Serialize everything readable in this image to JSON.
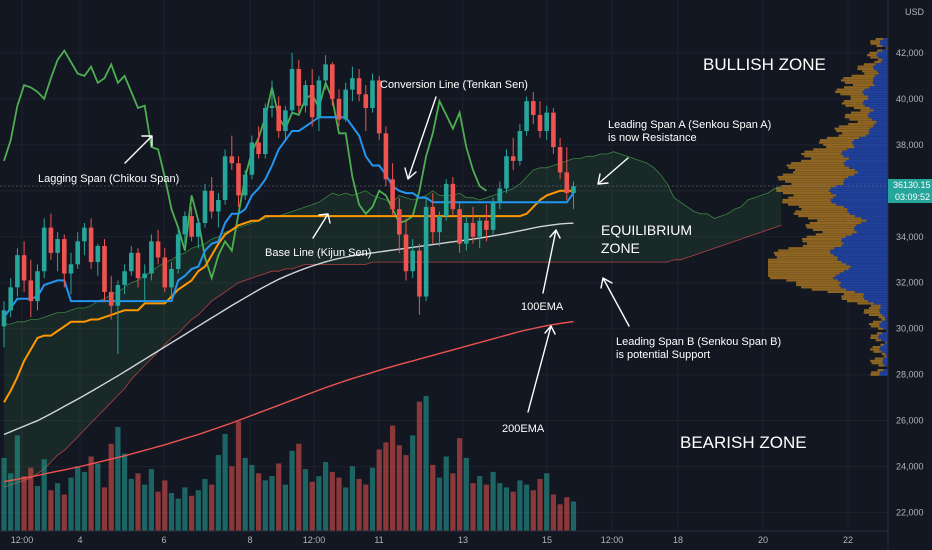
{
  "chart_data": {
    "type": "candlestick",
    "currency_label": "USD",
    "y_ticks": [
      22000,
      24000,
      26000,
      28000,
      30000,
      32000,
      34000,
      36000,
      38000,
      40000,
      42000
    ],
    "ylim": [
      21200,
      44300
    ],
    "x_ticks": [
      "12:00",
      "4",
      "6",
      "8",
      "12:00",
      "11",
      "13",
      "15",
      "12:00",
      "18",
      "20",
      "22"
    ],
    "last_price": {
      "value": "36130.15",
      "countdown": "03:09:52"
    },
    "colors": {
      "up": "#26a69a",
      "down": "#ef5350",
      "tenkan": "#2196f3",
      "kijun": "#ff9800",
      "chikou": "#4caf50",
      "ema100": "#d1d4dc",
      "ema200": "#ef5350",
      "vp_up": "#2962ff",
      "vp_down": "#f5a623"
    },
    "candles": [
      [
        30100,
        31200,
        29200,
        30800
      ],
      [
        30800,
        32200,
        30500,
        31800
      ],
      [
        31800,
        33500,
        31400,
        33200
      ],
      [
        33200,
        33800,
        31600,
        32100
      ],
      [
        32100,
        33000,
        30500,
        31200
      ],
      [
        31200,
        32800,
        30800,
        32500
      ],
      [
        32500,
        34800,
        32200,
        34400
      ],
      [
        34400,
        35000,
        33000,
        33300
      ],
      [
        33300,
        34200,
        32500,
        33900
      ],
      [
        33900,
        34100,
        31800,
        32400
      ],
      [
        32400,
        33300,
        31500,
        32800
      ],
      [
        32800,
        34200,
        32600,
        33800
      ],
      [
        33800,
        34600,
        33200,
        34400
      ],
      [
        34400,
        34800,
        32600,
        32900
      ],
      [
        32900,
        33700,
        32300,
        33600
      ],
      [
        33600,
        33900,
        31200,
        31600
      ],
      [
        31600,
        32300,
        30400,
        31000
      ],
      [
        31000,
        32100,
        28900,
        31900
      ],
      [
        31900,
        32800,
        31500,
        32500
      ],
      [
        32500,
        33600,
        32300,
        33300
      ],
      [
        33300,
        33500,
        31800,
        32200
      ],
      [
        32200,
        32800,
        31200,
        32400
      ],
      [
        32400,
        34100,
        32100,
        33800
      ],
      [
        33800,
        34300,
        32800,
        33100
      ],
      [
        33100,
        33500,
        31600,
        31800
      ],
      [
        31800,
        32900,
        31400,
        32600
      ],
      [
        32600,
        34300,
        32400,
        34100
      ],
      [
        34100,
        35100,
        33600,
        34900
      ],
      [
        34900,
        35300,
        33800,
        34000
      ],
      [
        34000,
        34800,
        33500,
        34600
      ],
      [
        34600,
        36300,
        34400,
        36000
      ],
      [
        36000,
        36600,
        34800,
        35100
      ],
      [
        35100,
        35900,
        34400,
        35600
      ],
      [
        35600,
        37800,
        35400,
        37500
      ],
      [
        37500,
        38400,
        36900,
        37200
      ],
      [
        37200,
        37500,
        35300,
        35800
      ],
      [
        35800,
        36900,
        35600,
        36700
      ],
      [
        36700,
        38400,
        36500,
        38100
      ],
      [
        38100,
        38800,
        37400,
        37600
      ],
      [
        37600,
        39800,
        37400,
        39600
      ],
      [
        39600,
        40800,
        39200,
        39700
      ],
      [
        39700,
        40100,
        38300,
        38600
      ],
      [
        38600,
        39700,
        38200,
        39500
      ],
      [
        39500,
        42000,
        39300,
        41300
      ],
      [
        41300,
        41700,
        39400,
        39700
      ],
      [
        39700,
        40800,
        39400,
        40600
      ],
      [
        40600,
        41300,
        38800,
        39200
      ],
      [
        39200,
        41000,
        38600,
        40800
      ],
      [
        40800,
        41900,
        40400,
        41500
      ],
      [
        41500,
        41600,
        39700,
        40000
      ],
      [
        40000,
        40400,
        38800,
        39100
      ],
      [
        39100,
        40700,
        39000,
        40400
      ],
      [
        40400,
        41400,
        39900,
        40900
      ],
      [
        40900,
        41300,
        39900,
        40200
      ],
      [
        40200,
        40600,
        38600,
        39600
      ],
      [
        39600,
        41100,
        39400,
        40800
      ],
      [
        40800,
        41000,
        38200,
        38500
      ],
      [
        38500,
        38800,
        36200,
        36500
      ],
      [
        36500,
        37200,
        34900,
        35200
      ],
      [
        35200,
        35700,
        33300,
        34100
      ],
      [
        34100,
        34800,
        32100,
        32500
      ],
      [
        32500,
        33900,
        32200,
        33400
      ],
      [
        33400,
        33700,
        30600,
        31400
      ],
      [
        31400,
        35700,
        31200,
        35300
      ],
      [
        35300,
        35900,
        33700,
        34200
      ],
      [
        34200,
        35100,
        33600,
        34900
      ],
      [
        34900,
        36500,
        34700,
        36300
      ],
      [
        36300,
        36600,
        34900,
        35200
      ],
      [
        35200,
        35500,
        33300,
        33700
      ],
      [
        33700,
        34900,
        33400,
        34600
      ],
      [
        34600,
        35300,
        33700,
        34000
      ],
      [
        34000,
        34900,
        33500,
        34700
      ],
      [
        34700,
        35400,
        33800,
        34300
      ],
      [
        34300,
        35700,
        34100,
        35500
      ],
      [
        35500,
        36400,
        35200,
        36100
      ],
      [
        36100,
        37800,
        35900,
        37500
      ],
      [
        37500,
        38300,
        36900,
        37300
      ],
      [
        37300,
        38900,
        37100,
        38600
      ],
      [
        38600,
        40100,
        38400,
        39900
      ],
      [
        39900,
        40300,
        38900,
        39300
      ],
      [
        39300,
        39900,
        38300,
        38600
      ],
      [
        38600,
        39700,
        38200,
        39400
      ],
      [
        39400,
        39600,
        37600,
        37900
      ],
      [
        37900,
        38300,
        36500,
        36800
      ],
      [
        36800,
        37900,
        35600,
        35900
      ],
      [
        35900,
        36400,
        35200,
        36200
      ]
    ],
    "tenkan": [
      30500,
      30900,
      31300,
      31300,
      31300,
      31400,
      31900,
      32000,
      32100,
      32100,
      31200,
      31200,
      31200,
      31200,
      31200,
      31200,
      31200,
      31200,
      31200,
      31200,
      31200,
      31200,
      31200,
      31200,
      31200,
      31200,
      32100,
      32300,
      32600,
      32700,
      33400,
      33700,
      33800,
      34600,
      35000,
      35000,
      35200,
      35800,
      36100,
      36500,
      37100,
      37800,
      38200,
      38600,
      38600,
      38800,
      39000,
      39200,
      39200,
      39200,
      39200,
      39200,
      38800,
      38400,
      37500,
      37100,
      37100,
      36700,
      36200,
      36000,
      35900,
      35900,
      35700,
      35700,
      35500,
      35500,
      35500,
      35500,
      35500,
      35500,
      35500,
      35500,
      35500,
      35500,
      35500,
      35500,
      35500,
      35500,
      35500,
      35500,
      35500,
      35500,
      35500,
      35500,
      35500,
      35900
    ],
    "kijun": [
      26800,
      27300,
      27900,
      28600,
      29100,
      29600,
      29700,
      29700,
      29900,
      30100,
      30300,
      30300,
      30300,
      30400,
      30400,
      30500,
      30600,
      30700,
      30800,
      30800,
      30800,
      31100,
      31100,
      31100,
      31100,
      31400,
      31700,
      31900,
      32100,
      32500,
      32700,
      33200,
      33700,
      34100,
      34300,
      34500,
      34600,
      34700,
      34700,
      34900,
      34900,
      34900,
      34900,
      34900,
      34900,
      34900,
      34900,
      34900,
      34900,
      34900,
      34900,
      34900,
      34900,
      34900,
      34900,
      34900,
      34900,
      34900,
      34900,
      34900,
      34900,
      34900,
      34900,
      34900,
      34900,
      34900,
      34900,
      34900,
      34900,
      34900,
      34900,
      34900,
      34900,
      34900,
      34900,
      34900,
      34900,
      34900,
      35000,
      35300,
      35600,
      35800,
      35900,
      36000,
      36000,
      36000
    ],
    "chikou": [
      37300,
      38200,
      39700,
      40600,
      40500,
      40300,
      40000,
      40900,
      41700,
      42100,
      41600,
      41100,
      41000,
      41400,
      40700,
      40900,
      41500,
      40700,
      41000,
      40300,
      39600,
      39700,
      37900,
      37800,
      36600,
      35200,
      34400,
      33400,
      35800,
      34700,
      33100,
      32200,
      33200,
      33800,
      33400,
      35000,
      36600,
      37700,
      38300,
      39200,
      40500,
      39200,
      38700,
      39400,
      39300,
      40000,
      40200,
      39600,
      40700,
      40000,
      38500,
      38500,
      36600,
      35400,
      35000,
      35300,
      36000,
      35800,
      35200,
      34600,
      34700,
      34900,
      36000,
      37500,
      38500,
      39900,
      39300,
      38700,
      39400,
      37900,
      36900,
      36200,
      36000
    ],
    "ema100": [
      25400,
      25520,
      25640,
      25760,
      25880,
      26000,
      26150,
      26300,
      26460,
      26620,
      26780,
      26940,
      27100,
      27270,
      27440,
      27610,
      27780,
      27950,
      28130,
      28310,
      28490,
      28670,
      28850,
      29030,
      29210,
      29390,
      29570,
      29750,
      29930,
      30110,
      30290,
      30470,
      30650,
      30830,
      31010,
      31180,
      31350,
      31520,
      31690,
      31850,
      32000,
      32150,
      32280,
      32400,
      32520,
      32630,
      32730,
      32820,
      32910,
      32990,
      33060,
      33120,
      33170,
      33220,
      33260,
      33300,
      33340,
      33380,
      33420,
      33460,
      33500,
      33540,
      33580,
      33620,
      33660,
      33700,
      33740,
      33780,
      33820,
      33860,
      33900,
      33940,
      33990,
      34040,
      34090,
      34140,
      34200,
      34260,
      34320,
      34380,
      34440,
      34480,
      34520,
      34560,
      34580,
      34590
    ],
    "ema200": [
      23350,
      23400,
      23450,
      23500,
      23560,
      23620,
      23680,
      23740,
      23800,
      23860,
      23920,
      23980,
      24050,
      24120,
      24190,
      24260,
      24330,
      24400,
      24470,
      24550,
      24630,
      24710,
      24790,
      24870,
      24950,
      25040,
      25130,
      25220,
      25310,
      25400,
      25500,
      25600,
      25700,
      25800,
      25900,
      26010,
      26120,
      26230,
      26340,
      26450,
      26560,
      26670,
      26780,
      26890,
      27000,
      27110,
      27220,
      27330,
      27440,
      27540,
      27640,
      27740,
      27830,
      27920,
      28010,
      28100,
      28190,
      28280,
      28360,
      28440,
      28520,
      28600,
      28680,
      28760,
      28840,
      28920,
      29000,
      29080,
      29160,
      29240,
      29320,
      29400,
      29480,
      29560,
      29640,
      29720,
      29800,
      29880,
      29950,
      30010,
      30070,
      30130,
      30180,
      30230,
      30270,
      30310
    ],
    "senkou_a": [
      30200,
      30200,
      30300,
      30300,
      30400,
      30400,
      30500,
      30600,
      30700,
      30700,
      30800,
      30900,
      30900,
      31000,
      31200,
      31300,
      31500,
      31600,
      31800,
      32000,
      32100,
      32300,
      32500,
      32700,
      32900,
      33000,
      33200,
      33300,
      33500,
      33600,
      33700,
      33900,
      34000,
      34200,
      34300,
      34400,
      34500,
      34600,
      34700,
      34800,
      34900,
      34900,
      35000,
      35100,
      35200,
      35300,
      35400,
      35500,
      35700,
      35900,
      35800,
      35900,
      35800,
      35900,
      36000,
      35800,
      35700,
      35600,
      35500,
      35800,
      35700,
      35600,
      35700,
      35800,
      36000,
      35800,
      35800,
      35800,
      35900,
      35700,
      35700,
      35600,
      35700,
      35800,
      35900,
      36000,
      36100,
      36300,
      36600,
      36900,
      37000,
      37000,
      37100,
      37200,
      37300,
      37400,
      37400,
      37500,
      37500,
      37600,
      37600,
      37700,
      37600,
      37500,
      37400,
      37300,
      37200,
      37000,
      36700,
      36300,
      35700,
      35500,
      35300,
      35100,
      35000,
      35000,
      34800,
      34900,
      35000,
      35200,
      35300,
      35600,
      35700,
      35800,
      35900,
      36100,
      36200
    ],
    "senkou_b": [
      23100,
      23200,
      23300,
      23400,
      23500,
      23700,
      23900,
      24200,
      24500,
      24700,
      25000,
      25300,
      25600,
      25900,
      26200,
      26500,
      26800,
      27100,
      27400,
      27800,
      28100,
      28400,
      28700,
      29000,
      29300,
      29600,
      29800,
      30100,
      30400,
      30600,
      30900,
      31200,
      31400,
      31600,
      31800,
      32000,
      32100,
      32200,
      32300,
      32400,
      32500,
      32500,
      32600,
      32600,
      32700,
      32800,
      32800,
      32800,
      32800,
      32800,
      32800,
      32800,
      32800,
      32800,
      32800,
      32900,
      32900,
      32900,
      32900,
      32900,
      32900,
      32900,
      32900,
      32900,
      32900,
      32900,
      32900,
      32900,
      32900,
      32900,
      32900,
      32900,
      32900,
      32900,
      32900,
      32900,
      32900,
      32900,
      32900,
      32900,
      32900,
      32900,
      32900,
      32900,
      32900,
      32900,
      32900,
      32900,
      32900,
      32900,
      32900,
      32900,
      32900,
      32900,
      32900,
      32900,
      32900,
      32900,
      32900,
      32900,
      33000,
      33000,
      33100,
      33200,
      33300,
      33400,
      33500,
      33600,
      33700,
      33800,
      33900,
      34000,
      34100,
      34200,
      34300,
      34400,
      34500
    ],
    "volume": [
      5.2,
      4.1,
      6.8,
      3.9,
      4.5,
      3.2,
      5.1,
      2.9,
      3.4,
      2.6,
      3.8,
      4.6,
      4.2,
      5.3,
      4.8,
      3.1,
      6.2,
      7.4,
      5.5,
      3.7,
      4.1,
      3.3,
      4.4,
      2.8,
      3.6,
      2.7,
      2.3,
      3.1,
      2.5,
      2.9,
      3.7,
      3.3,
      5.4,
      6.9,
      4.6,
      7.8,
      5.2,
      4.7,
      4.1,
      3.6,
      3.9,
      4.8,
      3.3,
      5.7,
      6.2,
      4.4,
      3.5,
      3.9,
      4.9,
      4.2,
      3.8,
      3.1,
      4.6,
      3.7,
      3.3,
      4.5,
      5.8,
      6.3,
      7.5,
      6.1,
      5.4,
      6.8,
      9.2,
      9.6,
      4.7,
      3.8,
      5.3,
      4.1,
      6.6,
      5.2,
      3.4,
      3.9,
      3.3,
      4.2,
      3.4,
      3.1,
      2.8,
      3.6,
      3.3,
      2.9,
      3.7,
      4.1,
      2.6,
      1.9,
      2.4,
      2.1
    ]
  },
  "annotations": {
    "bullish_zone": "BULLISH ZONE",
    "bearish_zone": "BEARISH ZONE",
    "equilibrium_1": "EQUILIBRIUM",
    "equilibrium_2": "ZONE",
    "conversion_line": "Conversion Line (Tenkan Sen)",
    "lagging_span": "Lagging Span (Chikou Span)",
    "base_line": "Base Line (Kijun Sen)",
    "ema100": "100EMA",
    "ema200": "200EMA",
    "span_a_1": "Leading Span A (Senkou Span A)",
    "span_a_2": "is now Resistance",
    "span_b_1": "Leading Span B (Senkou Span B)",
    "span_b_2": "is potential Support"
  }
}
